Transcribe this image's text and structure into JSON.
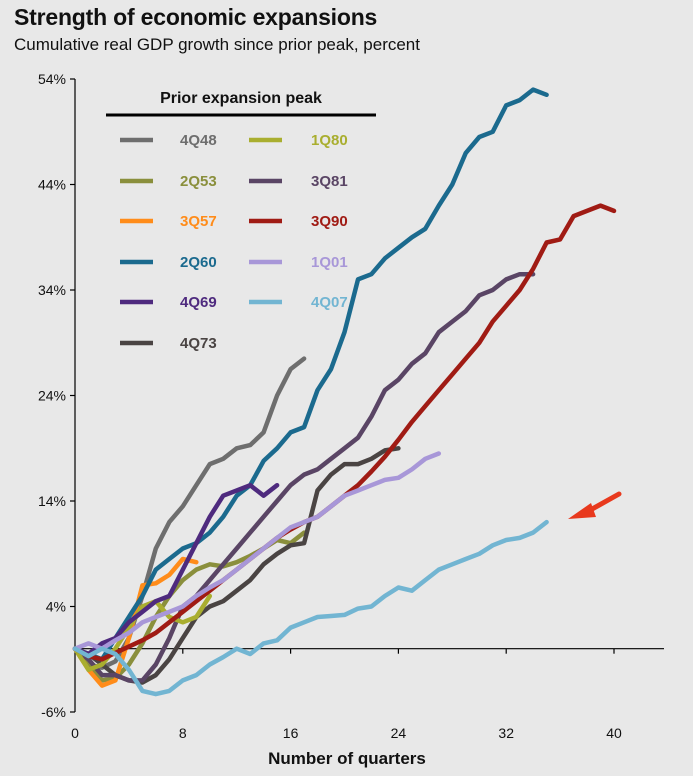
{
  "header": {
    "title": "Strength of economic expansions",
    "subtitle": "Cumulative real GDP growth since prior peak, percent"
  },
  "chart_data": {
    "type": "line",
    "title": "Strength of economic expansions",
    "subtitle": "Cumulative real GDP growth since prior peak, percent",
    "xlabel": "Number of quarters",
    "ylabel": "",
    "xlim": [
      0,
      43
    ],
    "ylim": [
      -6,
      54
    ],
    "x_ticks": [
      0,
      8,
      16,
      24,
      32,
      40
    ],
    "y_ticks": [
      -6,
      4,
      14,
      24,
      34,
      44,
      54
    ],
    "y_tick_labels": [
      "-6%",
      "4%",
      "14%",
      "24%",
      "34%",
      "44%",
      "54%"
    ],
    "grid": false,
    "legend": {
      "title": "Prior expansion peak",
      "placement": "top-left"
    },
    "annotation": {
      "type": "red-arrow",
      "points_to": "4Q07",
      "color": "#e8391d"
    },
    "series": [
      {
        "name": "4Q48",
        "color": "#6e6e6e",
        "values": [
          0,
          -1.5,
          -1.8,
          -1.2,
          1,
          5,
          9.5,
          12,
          13.5,
          15.5,
          17.5,
          18,
          19,
          19.3,
          20.5,
          24,
          26.5,
          27.5
        ]
      },
      {
        "name": "2Q53",
        "color": "#8a8f3c",
        "values": [
          0,
          -1.5,
          -3,
          -2.8,
          -1.5,
          0.5,
          3,
          5,
          6.5,
          7.5,
          8,
          7.8,
          8.2,
          8.8,
          9.5,
          10.3,
          10,
          11
        ]
      },
      {
        "name": "3Q57",
        "color": "#ff8c1a",
        "values": [
          0,
          -2,
          -3.5,
          -3,
          1,
          6,
          6.2,
          7,
          8.5,
          8.2
        ]
      },
      {
        "name": "2Q60",
        "color": "#1b6a8e",
        "values": [
          0,
          -0.5,
          -1,
          1,
          3,
          5,
          7.5,
          8.5,
          9.5,
          10,
          11,
          12.5,
          14.5,
          15.5,
          17.8,
          19,
          20.5,
          21,
          24.5,
          26.5,
          30,
          35,
          35.5,
          37,
          38,
          39,
          39.8,
          42,
          44,
          47,
          48.5,
          49,
          51.5,
          52,
          53,
          52.5
        ]
      },
      {
        "name": "4Q69",
        "color": "#4e2a7e",
        "values": [
          0,
          -0.5,
          0.5,
          1,
          2.5,
          3.5,
          4.5,
          5,
          7.5,
          10,
          12.5,
          14.5,
          15,
          15.5,
          14.5,
          15.5
        ]
      },
      {
        "name": "4Q73",
        "color": "#4a4443",
        "values": [
          0,
          -0.5,
          -1.5,
          -2.5,
          -3,
          -3.2,
          -2.5,
          -1,
          1,
          3,
          4,
          4.5,
          5.5,
          6.5,
          8,
          9,
          9.8,
          10,
          15,
          16.5,
          17.5,
          17.5,
          18,
          18.8,
          19
        ]
      },
      {
        "name": "1Q80",
        "color": "#a9ae2f",
        "values": [
          0,
          -2,
          -1.5,
          0,
          2,
          4,
          4.5,
          3,
          2.5,
          3,
          5
        ]
      },
      {
        "name": "3Q81",
        "color": "#5a4565",
        "values": [
          0,
          -1,
          -2.5,
          -2.5,
          -3,
          -3,
          -1.5,
          1,
          4,
          5,
          6.5,
          8,
          9.5,
          11,
          12.5,
          14,
          15.5,
          16.5,
          17,
          18,
          19,
          20,
          22,
          24.5,
          25.5,
          27,
          28,
          30,
          31,
          32,
          33.5,
          34,
          35,
          35.5,
          35.5
        ]
      },
      {
        "name": "3Q90",
        "color": "#a01b14",
        "values": [
          0,
          -0.7,
          -1,
          -0.4,
          0.2,
          0.8,
          1.5,
          2.5,
          3.5,
          4.5,
          5.5,
          6.5,
          7.5,
          8.5,
          9.5,
          10.5,
          11.3,
          12,
          12.5,
          13.5,
          14.5,
          15.5,
          16.8,
          18.2,
          19.8,
          21.5,
          23,
          24.5,
          26,
          27.5,
          29,
          31,
          32.5,
          34,
          36,
          38.5,
          38.8,
          41,
          41.5,
          42,
          41.5
        ]
      },
      {
        "name": "1Q01",
        "color": "#a897d8",
        "values": [
          0,
          0.5,
          0,
          0.8,
          1.5,
          2.5,
          3,
          3.5,
          4,
          5,
          5.8,
          6.5,
          7.5,
          8.5,
          9.5,
          10.5,
          11.5,
          12,
          12.5,
          13.5,
          14.5,
          15,
          15.5,
          16,
          16.2,
          17,
          18,
          18.5
        ]
      },
      {
        "name": "4Q07",
        "color": "#72b5d2",
        "values": [
          0,
          -0.7,
          0,
          -0.5,
          -2,
          -4,
          -4.3,
          -4,
          -3,
          -2.5,
          -1.5,
          -0.8,
          0,
          -0.5,
          0.5,
          0.8,
          2,
          2.5,
          3,
          3.1,
          3.2,
          3.8,
          4,
          5,
          5.8,
          5.5,
          6.5,
          7.5,
          8,
          8.5,
          9,
          9.8,
          10.3,
          10.5,
          11,
          12
        ]
      }
    ]
  }
}
